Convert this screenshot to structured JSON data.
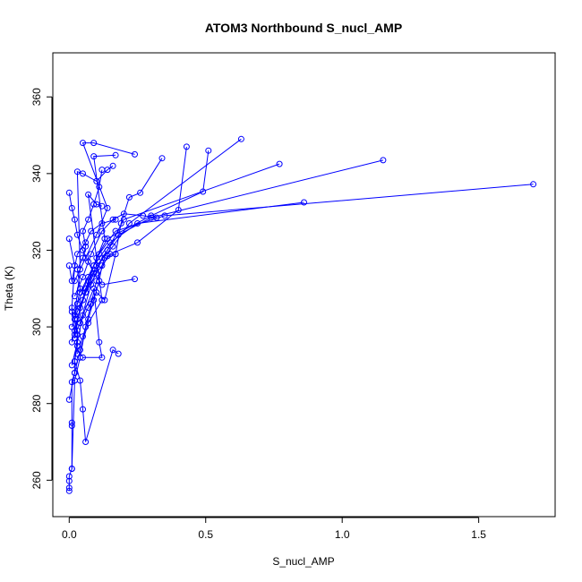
{
  "chart_data": {
    "type": "line",
    "title": "ATOM3 Northbound S_nucl_AMP",
    "xlabel": "S_nucl_AMP",
    "ylabel": "Theta (K)",
    "xlim": [
      -0.06,
      1.78
    ],
    "ylim": [
      250.5,
      371.5
    ],
    "xticks": [
      0.0,
      0.5,
      1.0,
      1.5
    ],
    "xtick_labels": [
      "0.0",
      "0.5",
      "1.0",
      "1.5"
    ],
    "yticks": [
      260,
      280,
      300,
      320,
      340,
      360
    ],
    "ytick_labels": [
      "260",
      "280",
      "300",
      "320",
      "340",
      "360"
    ],
    "grid": false,
    "legend": "none",
    "markers": "open-circle",
    "series_color": "#0000ff",
    "series": [
      {
        "values": [
          [
            0.0,
            257.2
          ],
          [
            0.0,
            258.0
          ],
          [
            0.0,
            259.8
          ],
          [
            0.0,
            261.0
          ],
          [
            0.01,
            263.0
          ],
          [
            0.01,
            274.2
          ],
          [
            0.01,
            275.0
          ],
          [
            0.01,
            285.6
          ],
          [
            0.02,
            288.0
          ],
          [
            0.02,
            291.0
          ],
          [
            0.03,
            295.0
          ],
          [
            0.03,
            299.0
          ],
          [
            0.02,
            302.0
          ],
          [
            0.03,
            306.0
          ],
          [
            0.04,
            310.0
          ],
          [
            0.03,
            315.0
          ],
          [
            0.05,
            318.0
          ],
          [
            0.06,
            321.0
          ],
          [
            0.05,
            325.0
          ],
          [
            0.07,
            328.0
          ],
          [
            0.09,
            332.0
          ],
          [
            0.11,
            336.5
          ],
          [
            0.12,
            341.0
          ]
        ]
      },
      {
        "values": [
          [
            0.01,
            263.0
          ],
          [
            0.02,
            286.0
          ],
          [
            0.04,
            292.0
          ],
          [
            0.06,
            300.0
          ],
          [
            0.08,
            306.0
          ],
          [
            0.1,
            312.0
          ],
          [
            0.14,
            318.5
          ],
          [
            0.17,
            319.0
          ],
          [
            0.19,
            327.0
          ],
          [
            0.22,
            333.8
          ],
          [
            0.26,
            335.0
          ],
          [
            0.34,
            344.0
          ]
        ]
      },
      {
        "values": [
          [
            0.0,
            323.0
          ],
          [
            0.02,
            316.0
          ],
          [
            0.01,
            305.0
          ],
          [
            0.03,
            298.0
          ],
          [
            0.02,
            291.0
          ],
          [
            0.04,
            286.0
          ],
          [
            0.05,
            278.5
          ],
          [
            0.06,
            270.0
          ],
          [
            0.16,
            294.0
          ],
          [
            0.18,
            293.0
          ]
        ]
      },
      {
        "values": [
          [
            0.0,
            335.0
          ],
          [
            0.01,
            331.0
          ],
          [
            0.02,
            328.0
          ],
          [
            0.03,
            324.0
          ],
          [
            0.05,
            320.0
          ],
          [
            0.07,
            317.0
          ],
          [
            0.09,
            314.0
          ],
          [
            0.12,
            311.0
          ],
          [
            0.24,
            312.5
          ]
        ]
      },
      {
        "values": [
          [
            0.01,
            300.0
          ],
          [
            0.03,
            304.0
          ],
          [
            0.06,
            309.0
          ],
          [
            0.1,
            314.0
          ],
          [
            0.15,
            319.0
          ],
          [
            0.25,
            322.0
          ],
          [
            0.4,
            330.5
          ],
          [
            0.43,
            347.0
          ]
        ]
      },
      {
        "values": [
          [
            0.02,
            297.0
          ],
          [
            0.04,
            305.0
          ],
          [
            0.07,
            312.0
          ],
          [
            0.1,
            318.0
          ],
          [
            0.14,
            323.0
          ],
          [
            0.3,
            329.0
          ],
          [
            0.49,
            335.3
          ],
          [
            0.51,
            346.0
          ]
        ]
      },
      {
        "values": [
          [
            0.03,
            302.0
          ],
          [
            0.06,
            310.0
          ],
          [
            0.1,
            316.0
          ],
          [
            0.16,
            321.0
          ],
          [
            0.22,
            327.0
          ],
          [
            0.63,
            349.0
          ]
        ]
      },
      {
        "values": [
          [
            0.02,
            299.0
          ],
          [
            0.05,
            307.0
          ],
          [
            0.09,
            314.0
          ],
          [
            0.14,
            320.0
          ],
          [
            0.2,
            328.0
          ],
          [
            0.77,
            342.5
          ]
        ]
      },
      {
        "values": [
          [
            0.04,
            301.0
          ],
          [
            0.08,
            311.0
          ],
          [
            0.12,
            318.0
          ],
          [
            0.18,
            324.0
          ],
          [
            0.3,
            328.5
          ],
          [
            1.15,
            343.5
          ]
        ]
      },
      {
        "values": [
          [
            0.03,
            306.0
          ],
          [
            0.07,
            313.0
          ],
          [
            0.11,
            319.0
          ],
          [
            0.17,
            325.0
          ],
          [
            0.35,
            329.0
          ],
          [
            1.7,
            337.2
          ]
        ]
      },
      {
        "values": [
          [
            0.04,
            309.0
          ],
          [
            0.09,
            316.0
          ],
          [
            0.15,
            322.0
          ],
          [
            0.25,
            327.0
          ],
          [
            0.86,
            332.5
          ]
        ]
      },
      {
        "values": [
          [
            0.02,
            312.0
          ],
          [
            0.06,
            318.0
          ],
          [
            0.1,
            324.0
          ],
          [
            0.14,
            331.0
          ],
          [
            0.05,
            348.0
          ],
          [
            0.09,
            348.0
          ],
          [
            0.24,
            345.0
          ]
        ]
      },
      {
        "values": [
          [
            0.01,
            296.0
          ],
          [
            0.03,
            302.0
          ],
          [
            0.06,
            309.0
          ],
          [
            0.09,
            316.0
          ],
          [
            0.13,
            323.0
          ],
          [
            0.09,
            344.5
          ],
          [
            0.17,
            344.8
          ]
        ]
      },
      {
        "values": [
          [
            0.02,
            303.0
          ],
          [
            0.04,
            315.0
          ],
          [
            0.03,
            340.5
          ],
          [
            0.05,
            340.0
          ],
          [
            0.1,
            338.0
          ],
          [
            0.14,
            341.0
          ],
          [
            0.16,
            342.0
          ]
        ]
      },
      {
        "values": [
          [
            0.0,
            281.0
          ],
          [
            0.02,
            288.0
          ],
          [
            0.04,
            294.0
          ],
          [
            0.07,
            301.0
          ],
          [
            0.12,
            307.0
          ],
          [
            0.07,
            334.5
          ],
          [
            0.1,
            332.0
          ],
          [
            0.12,
            331.5
          ]
        ]
      },
      {
        "values": [
          [
            0.01,
            290.0
          ],
          [
            0.03,
            296.0
          ],
          [
            0.05,
            303.0
          ],
          [
            0.09,
            310.0
          ],
          [
            0.11,
            296.0
          ],
          [
            0.12,
            292.0
          ],
          [
            0.05,
            292.0
          ]
        ]
      },
      {
        "values": [
          [
            0.02,
            308.0
          ],
          [
            0.05,
            313.0
          ],
          [
            0.08,
            319.0
          ],
          [
            0.12,
            325.0
          ],
          [
            0.16,
            328.0
          ],
          [
            0.2,
            329.5
          ],
          [
            0.27,
            329.0
          ],
          [
            0.32,
            328.5
          ]
        ]
      },
      {
        "values": [
          [
            0.0,
            316.0
          ],
          [
            0.01,
            312.0
          ],
          [
            0.03,
            319.0
          ],
          [
            0.06,
            322.0
          ],
          [
            0.08,
            325.0
          ],
          [
            0.12,
            327.0
          ],
          [
            0.17,
            328.0
          ]
        ]
      },
      {
        "values": [
          [
            0.01,
            304.0
          ],
          [
            0.02,
            298.0
          ],
          [
            0.04,
            301.0
          ],
          [
            0.07,
            305.0
          ],
          [
            0.1,
            309.0
          ],
          [
            0.13,
            307.0
          ],
          [
            0.17,
            319.0
          ]
        ]
      },
      {
        "values": [
          [
            0.03,
            293.0
          ],
          [
            0.05,
            297.5
          ],
          [
            0.07,
            302.0
          ],
          [
            0.09,
            307.0
          ],
          [
            0.11,
            312.0
          ],
          [
            0.12,
            316.0
          ],
          [
            0.13,
            318.0
          ]
        ]
      }
    ]
  }
}
